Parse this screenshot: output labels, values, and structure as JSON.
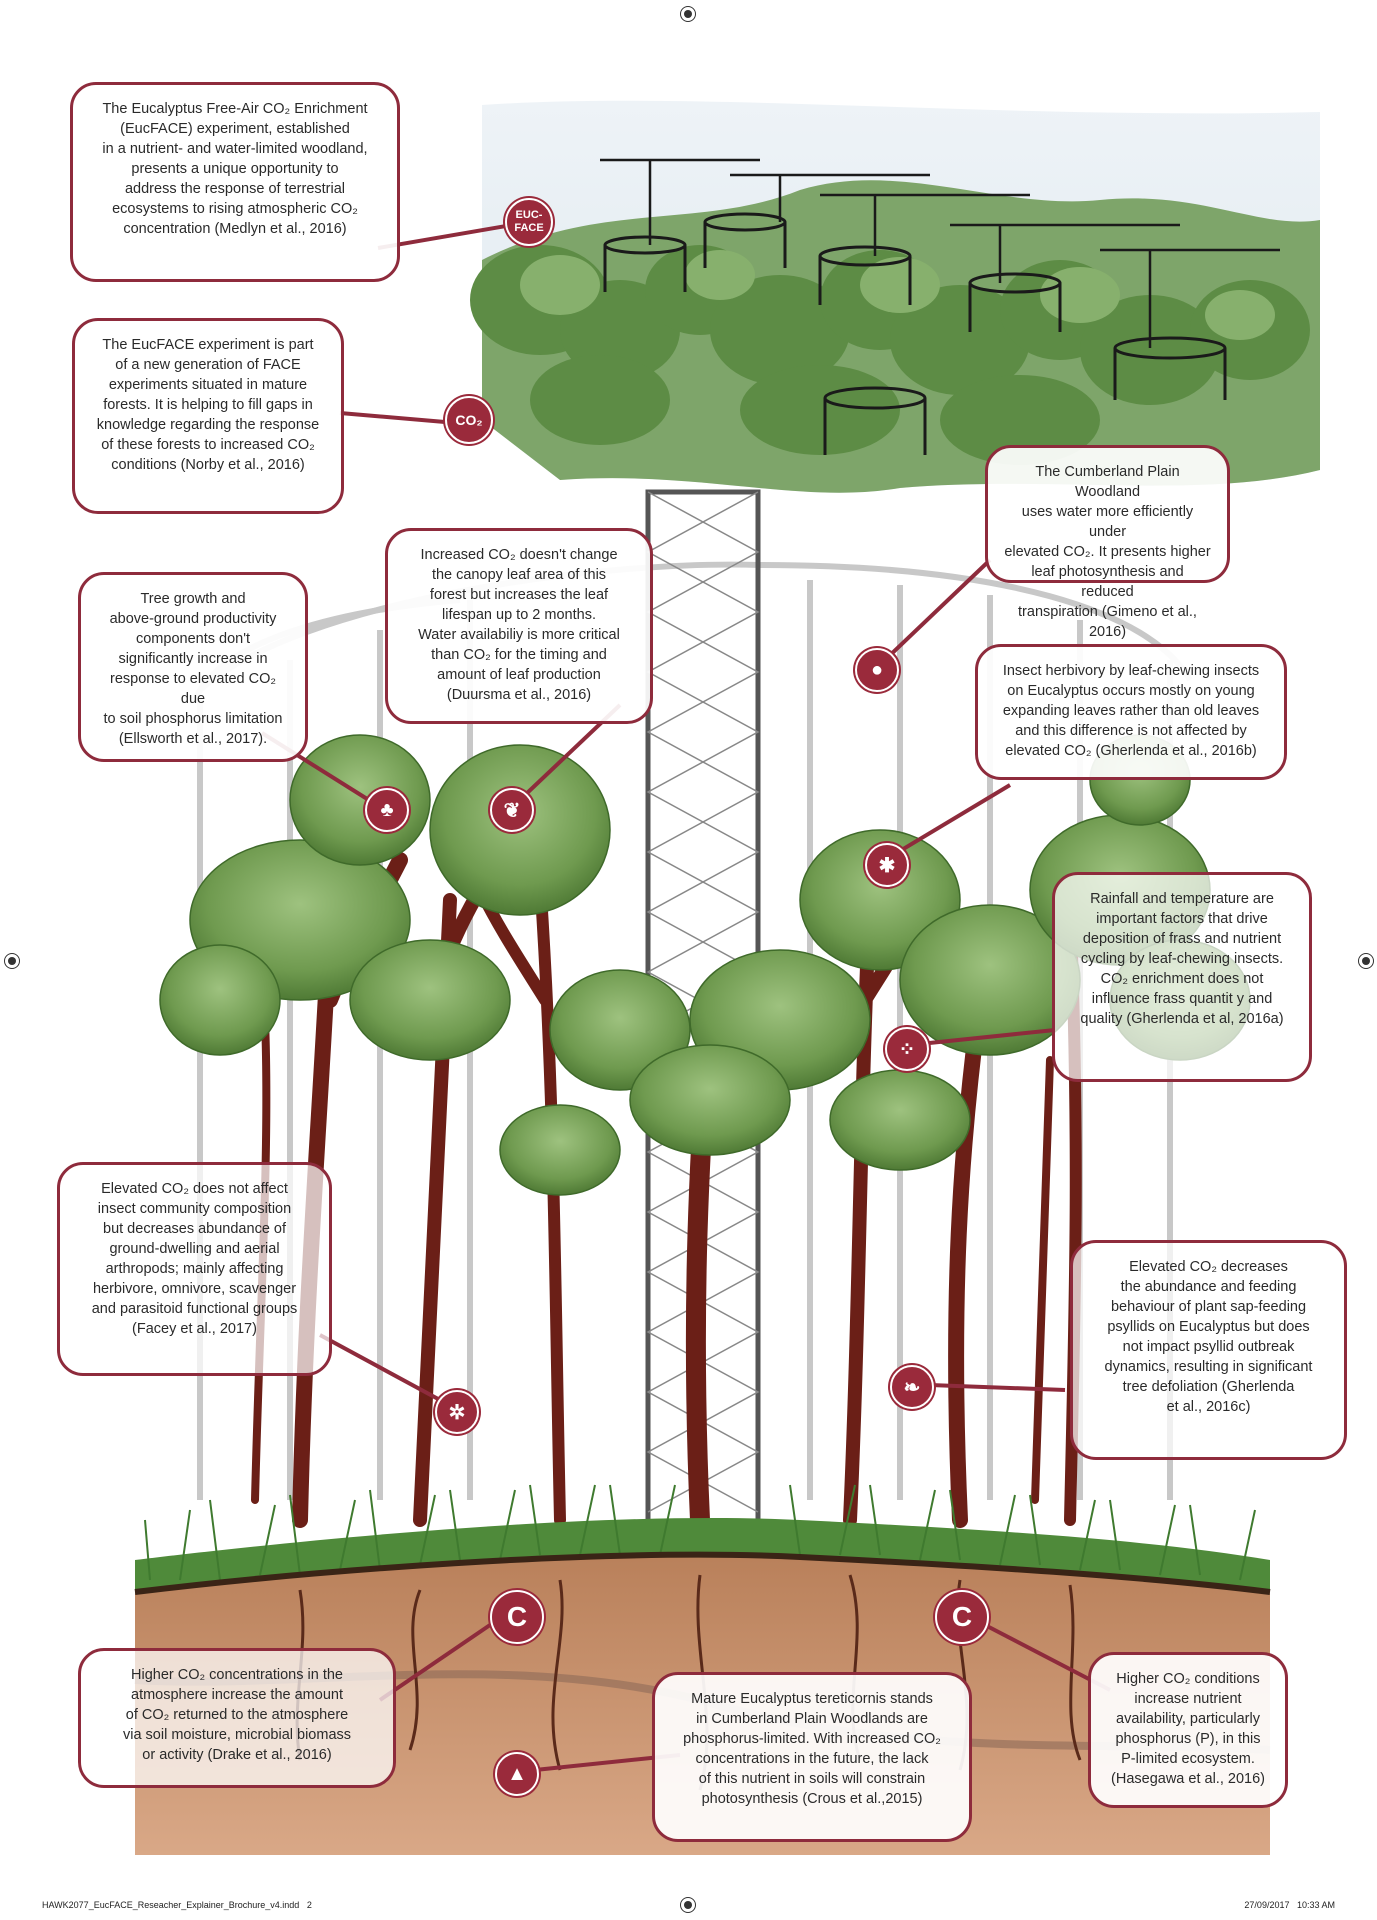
{
  "callouts": {
    "eucface_intro": "The Eucalyptus Free-Air CO₂ Enrichment\n(EucFACE) experiment, established\nin a nutrient- and water-limited woodland,\npresents a unique opportunity to\naddress the response of terrestrial\necosystems to rising atmospheric CO₂\nconcentration (Medlyn et al., 2016)",
    "new_generation": "The EucFACE experiment is part\nof a new generation of FACE\nexperiments situated in mature\nforests. It is helping to fill gaps in\nknowledge regarding the response\nof these forests to increased CO₂\nconditions (Norby et al., 2016)",
    "tree_growth": "Tree growth and\nabove-ground productivity\ncomponents don't\nsignificantly increase in\nresponse to elevated CO₂ due\nto soil phosphorus limitation\n(Ellsworth et al., 2017).",
    "canopy_leaf": "Increased CO₂ doesn't change\nthe canopy leaf area of this\nforest but increases the leaf\nlifespan up to 2 months.\nWater availabiliy is more critical\nthan CO₂ for the timing and\namount of leaf production\n(Duursma et al., 2016)",
    "water_efficiency": "The Cumberland Plain Woodland\nuses water more efficiently under\nelevated CO₂. It presents higher\nleaf photosynthesis and reduced\ntranspiration (Gimeno et al., 2016)",
    "insect_herbivory": "Insect herbivory by leaf-chewing insects\non Eucalyptus occurs mostly on young\nexpanding leaves rather than old leaves\nand this difference is not affected by\nelevated CO₂ (Gherlenda et al., 2016b)",
    "frass": "Rainfall and temperature are\nimportant factors that drive\ndeposition of frass  and nutrient\ncycling by leaf-chewing insects.\nCO₂ enrichment does not\ninfluence frass quantit y and\nquality (Gherlenda et al, 2016a)",
    "insect_community": "Elevated CO₂ does not affect\ninsect community composition\nbut decreases abundance of\nground-dwelling and aerial\narthropods; mainly affecting\nherbivore, omnivore, scavenger\nand parasitoid functional groups\n(Facey et al., 2017)",
    "psyllids": "Elevated CO₂ decreases\nthe abundance and feeding\nbehaviour of plant sap-feeding\npsyllids on Eucalyptus but does\nnot impact psyllid outbreak\ndynamics, resulting in significant\ntree defoliation (Gherlenda\net al., 2016c)",
    "soil_co2": "Higher CO₂ concentrations in the\natmosphere increase the amount\nof CO₂ returned to the atmosphere\nvia soil moisture, microbial biomass\nor activity (Drake et al., 2016)",
    "phosphorus_limited": "Mature Eucalyptus tereticornis stands\nin Cumberland Plain Woodlands are\nphosphorus-limited. With increased CO₂\nconcentrations in the future, the lack\nof this nutrient in soils will constrain\nphotosynthesis (Crous et al.,2015)",
    "nutrient_availability": "Higher CO₂ conditions\nincrease nutrient\navailability, particularly\nphosphorus (P), in this\nP-limited ecosystem.\n(Hasegawa et al., 2016)"
  },
  "icons": {
    "eucface_badge": "EUC-\nFACE",
    "co2_badge": "CO₂",
    "carbon_left": "C",
    "carbon_right": "C"
  },
  "footer": {
    "filename": "HAWK2077_EucFACE_Reseacher_Explainer_Brochure_v4.indd   2",
    "timestamp": "27/09/2017   10:33 AM"
  },
  "colors": {
    "accent": "#8e2b3c",
    "foliage": "#6f9a4f",
    "trunk": "#6b1f17",
    "soil": "#c9936b"
  }
}
